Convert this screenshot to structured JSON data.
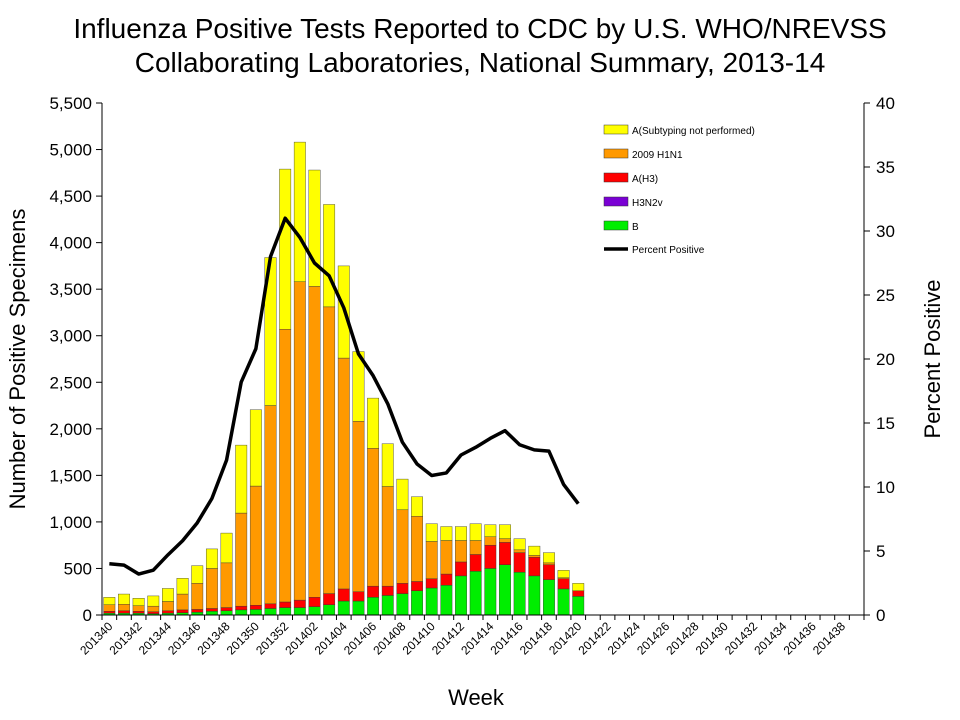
{
  "chart_data": {
    "type": "bar",
    "stacked": true,
    "title_line1": "Influenza Positive Tests Reported to CDC by U.S. WHO/NREVSS",
    "title_line2": "Collaborating Laboratories, National Summary, 2013-14",
    "xlabel": "Week",
    "ylabel": "Number of Positive Specimens",
    "y2label": "Percent Positive",
    "ylim": [
      0,
      5500
    ],
    "y2lim": [
      0,
      40
    ],
    "yticks": [
      "0",
      "500",
      "1,000",
      "1,500",
      "2,000",
      "2,500",
      "3,000",
      "3,500",
      "4,000",
      "4,500",
      "5,000",
      "5,500"
    ],
    "y2ticks": [
      "0",
      "5",
      "10",
      "15",
      "20",
      "25",
      "30",
      "35",
      "40"
    ],
    "weeks": [
      "201340",
      "201341",
      "201342",
      "201343",
      "201344",
      "201345",
      "201346",
      "201347",
      "201348",
      "201349",
      "201350",
      "201351",
      "201352",
      "201401",
      "201402",
      "201403",
      "201404",
      "201405",
      "201406",
      "201407",
      "201408",
      "201409",
      "201410",
      "201411",
      "201412",
      "201413",
      "201414",
      "201415",
      "201416",
      "201417",
      "201418",
      "201419",
      "201420",
      "201421",
      "201422",
      "201423",
      "201424",
      "201425",
      "201426",
      "201427",
      "201428",
      "201429",
      "201430",
      "201431",
      "201432",
      "201433",
      "201434",
      "201435",
      "201436",
      "201437",
      "201438",
      "201439"
    ],
    "xtick_labels": [
      "201340",
      "201342",
      "201344",
      "201346",
      "201348",
      "201350",
      "201352",
      "201402",
      "201404",
      "201406",
      "201408",
      "201410",
      "201412",
      "201414",
      "201416",
      "201418",
      "201420",
      "201422",
      "201424",
      "201426",
      "201428",
      "201430",
      "201432",
      "201434",
      "201436",
      "201438"
    ],
    "series": [
      {
        "name": "B",
        "color": "#00ee00",
        "values": [
          20,
          20,
          20,
          15,
          20,
          25,
          30,
          40,
          45,
          55,
          60,
          70,
          80,
          80,
          90,
          110,
          150,
          150,
          190,
          210,
          230,
          260,
          290,
          320,
          420,
          470,
          500,
          540,
          460,
          420,
          380,
          280,
          200
        ]
      },
      {
        "name": "H3N2v",
        "color": "#7a00d4",
        "values": [
          0,
          0,
          0,
          0,
          0,
          0,
          0,
          0,
          0,
          0,
          0,
          0,
          0,
          0,
          0,
          0,
          0,
          0,
          0,
          0,
          0,
          0,
          0,
          0,
          0,
          0,
          0,
          0,
          0,
          0,
          0,
          0,
          0
        ]
      },
      {
        "name": "A(H3)",
        "color": "#ff0000",
        "values": [
          20,
          25,
          20,
          20,
          25,
          30,
          30,
          30,
          35,
          40,
          45,
          50,
          60,
          80,
          100,
          120,
          130,
          100,
          120,
          100,
          110,
          100,
          100,
          120,
          150,
          180,
          250,
          240,
          210,
          200,
          160,
          110,
          60
        ]
      },
      {
        "name": "2009 H1N1",
        "color": "#ff9900",
        "values": [
          70,
          70,
          60,
          60,
          100,
          170,
          280,
          430,
          480,
          1000,
          1280,
          2130,
          2930,
          3420,
          3340,
          3080,
          2480,
          1830,
          1480,
          1070,
          790,
          700,
          400,
          360,
          230,
          150,
          90,
          40,
          30,
          20,
          20,
          10,
          0
        ]
      },
      {
        "name": "A(Subtyping not performed)",
        "color": "#ffff00",
        "values": [
          80,
          110,
          80,
          110,
          140,
          170,
          190,
          210,
          320,
          730,
          820,
          1590,
          1720,
          1500,
          1250,
          1100,
          990,
          750,
          540,
          460,
          330,
          210,
          190,
          150,
          150,
          180,
          130,
          150,
          120,
          100,
          110,
          80,
          80
        ]
      }
    ],
    "percent_positive": {
      "name": "Percent Positive",
      "color": "#000000",
      "values": [
        4.0,
        3.9,
        3.2,
        3.5,
        4.7,
        5.8,
        7.2,
        9.1,
        12.1,
        18.2,
        20.8,
        28.0,
        31.0,
        29.5,
        27.5,
        26.5,
        24.0,
        20.4,
        18.7,
        16.5,
        13.5,
        11.8,
        10.9,
        11.1,
        12.5,
        13.1,
        13.8,
        14.4,
        13.3,
        12.9,
        12.8,
        10.2,
        8.7
      ]
    },
    "legend": [
      "A(Subtyping not performed)",
      "2009 H1N1",
      "A(H3)",
      "H3N2v",
      "B",
      "Percent Positive"
    ]
  }
}
